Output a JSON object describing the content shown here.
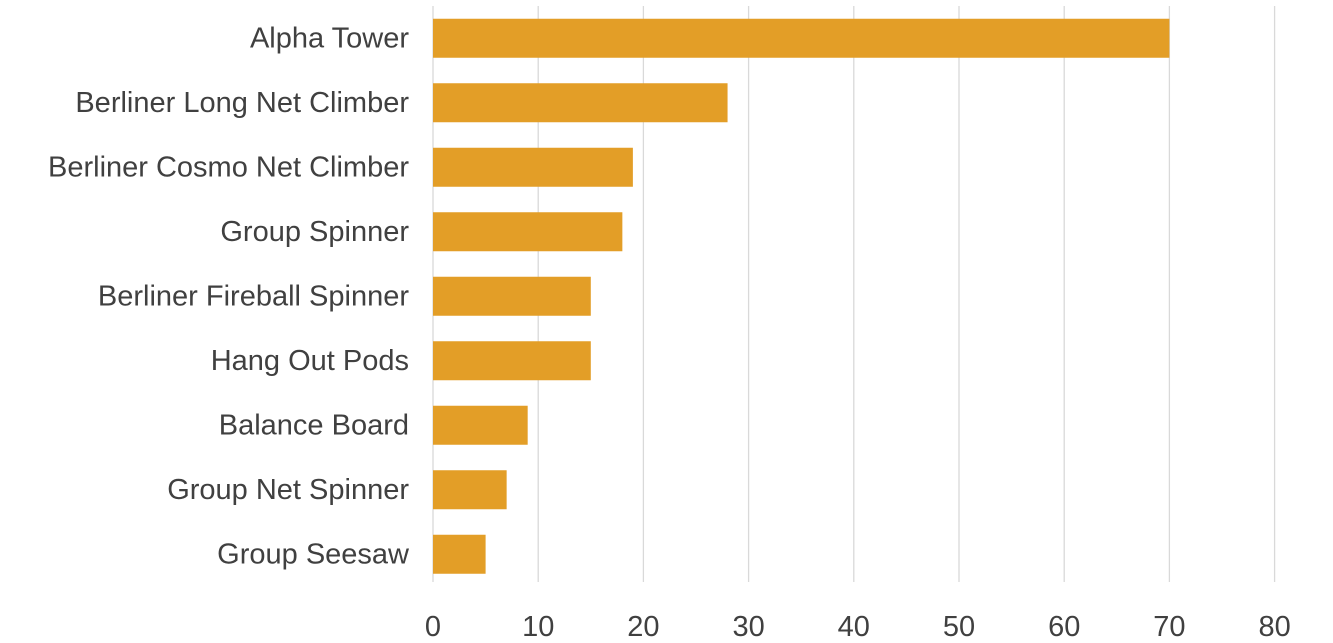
{
  "chart_data": {
    "type": "bar",
    "orientation": "horizontal",
    "categories": [
      "Alpha Tower",
      "Berliner Long Net Climber",
      "Berliner Cosmo Net Climber",
      "Group Spinner",
      "Berliner Fireball Spinner",
      "Hang Out Pods",
      "Balance Board",
      "Group Net Spinner",
      "Group Seesaw"
    ],
    "values": [
      70,
      28,
      19,
      18,
      15,
      15,
      9,
      7,
      5
    ],
    "xlim": [
      0,
      80
    ],
    "xticks": [
      0,
      10,
      20,
      30,
      40,
      50,
      60,
      70,
      80
    ],
    "grid": "vertical",
    "legend": "none",
    "bar_color": "#e39e27",
    "grid_color": "#d9d9d9",
    "text_color": "#404040"
  }
}
